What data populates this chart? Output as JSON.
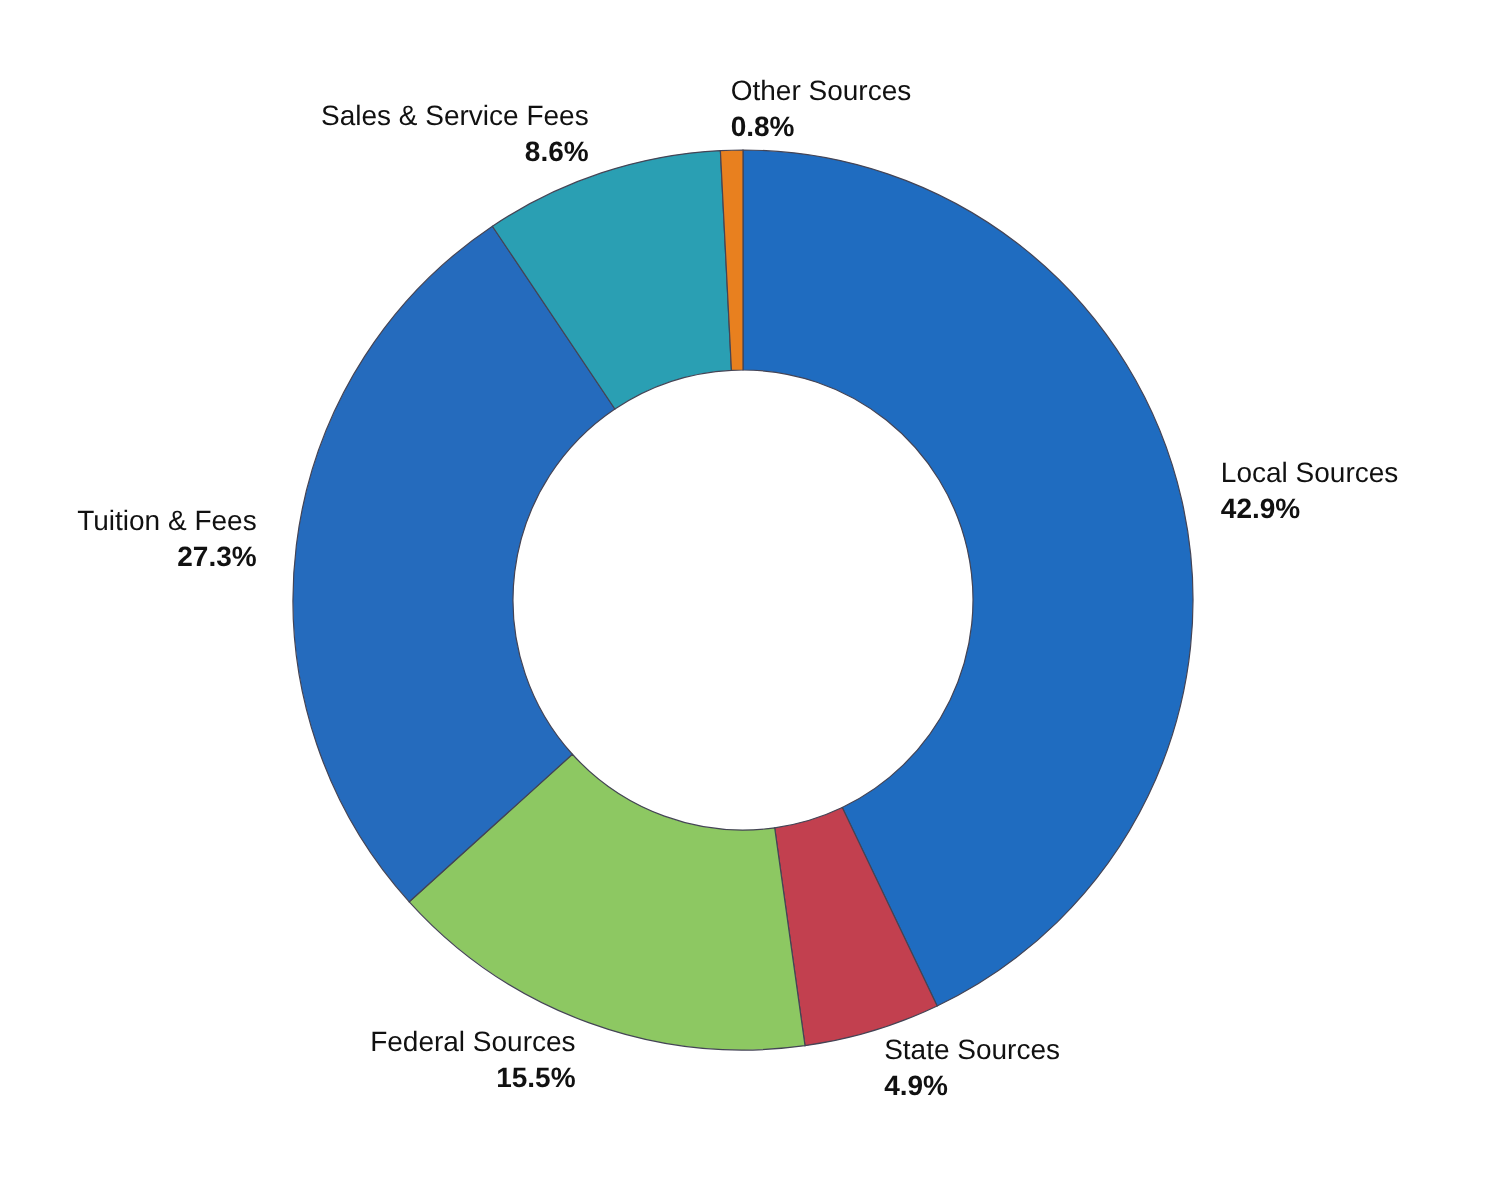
{
  "chart_data": {
    "type": "donut",
    "categories": [
      "Local Sources",
      "State Sources",
      "Federal Sources",
      "Tuition & Fees",
      "Sales & Service Fees",
      "Other Sources"
    ],
    "values": [
      42.9,
      4.9,
      15.5,
      27.3,
      8.6,
      0.8
    ],
    "value_labels": [
      "42.9%",
      "4.9%",
      "15.5%",
      "27.3%",
      "8.6%",
      "0.8%"
    ],
    "colors": [
      "#1f6cc0",
      "#c2404f",
      "#8dc862",
      "#256bbd",
      "#2a9fb3",
      "#e8801f"
    ],
    "legend": false
  }
}
